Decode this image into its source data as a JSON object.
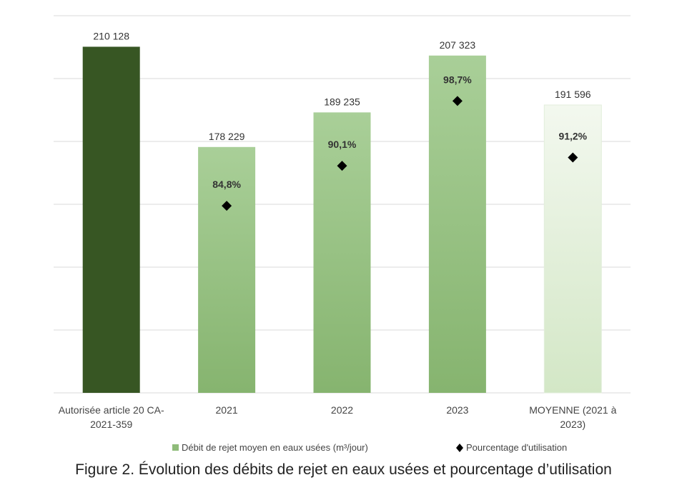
{
  "chart_data": {
    "type": "bar",
    "categories": [
      [
        "Autorisée article 20 CA-",
        "2021-359"
      ],
      [
        "2021"
      ],
      [
        "2022"
      ],
      [
        "2023"
      ],
      [
        "MOYENNE (2021 à",
        "2023)"
      ]
    ],
    "series": [
      {
        "name": "Débit de rejet moyen en eaux usées (m³/jour)",
        "kind": "bar",
        "values": [
          210128,
          178229,
          189235,
          207323,
          191596
        ],
        "labels": [
          "210 128",
          "178 229",
          "189 235",
          "207 323",
          "191 596"
        ]
      },
      {
        "name": "Pourcentage d'utilisation",
        "kind": "scatter",
        "marker": "diamond",
        "values": [
          null,
          84.8,
          90.1,
          98.7,
          91.2
        ],
        "labels": [
          "",
          "84,8%",
          "90,1%",
          "98,7%",
          "91,2%"
        ]
      }
    ],
    "ylim": [
      100000,
      220000
    ],
    "ytick_step": 20000,
    "y2lim": [
      60,
      110
    ],
    "axis_labels_visible": false,
    "grid": true,
    "legend_position": "bottom",
    "colors": {
      "authorized": "#375623",
      "years_top": "#a9cf98",
      "years_bottom": "#86b46f",
      "average_top": "#f3f8ef",
      "average_bottom": "#d3e7c6",
      "legend_bar": "#8fbc7a",
      "marker": "#000000",
      "grid": "#d9d9d9"
    }
  },
  "caption": "Figure 2. Évolution des débits de rejet en eaux usées et pourcentage d’utilisation"
}
